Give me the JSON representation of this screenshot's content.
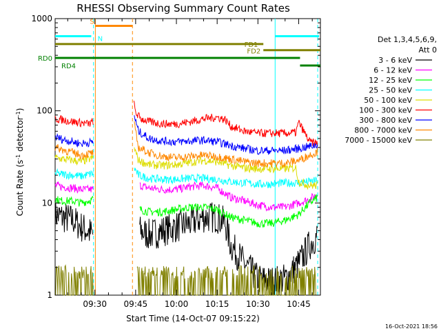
{
  "chart_data": {
    "type": "line",
    "title": "RHESSI Observing Summary Count Rates",
    "xlabel": "Start Time (14-Oct-07 09:15:22)",
    "ylabel_main": "Count Rate (s",
    "ylabel_sup1": "-1",
    "ylabel_mid": " detector",
    "ylabel_sup2": "-1",
    "ylabel_end": ")",
    "y_scale": "log",
    "ylim": [
      1,
      1000
    ],
    "x_range": [
      "09:15:22",
      "10:53:00"
    ],
    "x_ticks": [
      "09:30",
      "09:45",
      "10:00",
      "10:15",
      "10:30",
      "10:45"
    ],
    "y_ticks": [
      "1",
      "10",
      "100",
      "1000"
    ],
    "legend_header": [
      "Det 1,3,4,5,6,9,",
      "Att 0"
    ],
    "series": [
      {
        "name": "3 - 6 keV",
        "color": "#000000",
        "segments": [
          {
            "t": [
              "09:15:22",
              "09:18",
              "09:22",
              "09:25",
              "09:29:30"
            ],
            "v": [
              7.5,
              7.0,
              6.5,
              5.5,
              4.5
            ]
          },
          {
            "t": [
              "09:46:30",
              "09:50",
              "09:55",
              "10:00",
              "10:05",
              "10:10",
              "10:15",
              "10:18",
              "10:20",
              "10:25",
              "10:30",
              "10:35",
              "10:40",
              "10:45",
              "10:49",
              "10:52"
            ],
            "v": [
              5.0,
              4.5,
              5.0,
              5.5,
              6.0,
              7.0,
              7.0,
              6.0,
              3.5,
              2.2,
              1.5,
              1.4,
              1.5,
              2.2,
              3.5,
              4.5
            ]
          }
        ]
      },
      {
        "name": "6 - 12 keV",
        "color": "#ff00ff",
        "segments": [
          {
            "t": [
              "09:15:22",
              "09:18",
              "09:22",
              "09:25",
              "09:29:30"
            ],
            "v": [
              15.5,
              15.0,
              14.5,
              14.0,
              14.0
            ]
          },
          {
            "t": [
              "09:46:30",
              "09:50",
              "09:55",
              "10:00",
              "10:05",
              "10:10",
              "10:15",
              "10:20",
              "10:25",
              "10:30",
              "10:35",
              "10:40",
              "10:45",
              "10:49",
              "10:52"
            ],
            "v": [
              15.5,
              14.5,
              14.0,
              14.0,
              15.0,
              15.5,
              14.5,
              11.5,
              10.5,
              9.5,
              9.0,
              9.0,
              10.0,
              11.0,
              12.5
            ]
          }
        ]
      },
      {
        "name": "12 - 25 keV",
        "color": "#00ff00",
        "segments": [
          {
            "t": [
              "09:15:22",
              "09:18",
              "09:22",
              "09:25",
              "09:29:30"
            ],
            "v": [
              11.0,
              10.5,
              10.5,
              10.0,
              11.0
            ]
          },
          {
            "t": [
              "09:46:30",
              "09:50",
              "09:55",
              "10:00",
              "10:05",
              "10:10",
              "10:15",
              "10:20",
              "10:25",
              "10:30",
              "10:35",
              "10:40",
              "10:45",
              "10:49",
              "10:52"
            ],
            "v": [
              8.5,
              8.0,
              8.0,
              8.5,
              9.0,
              9.0,
              8.5,
              7.0,
              6.5,
              6.0,
              6.0,
              6.5,
              7.5,
              10.0,
              11.5
            ]
          }
        ]
      },
      {
        "name": "25 - 50 keV",
        "color": "#00ffff",
        "segments": [
          {
            "t": [
              "09:15:22",
              "09:18",
              "09:22",
              "09:25",
              "09:29:30"
            ],
            "v": [
              21.0,
              20.5,
              20.0,
              19.5,
              21.0
            ]
          },
          {
            "t": [
              "09:44:30",
              "09:46",
              "09:50",
              "09:55",
              "10:00",
              "10:05",
              "10:10",
              "10:15",
              "10:20",
              "10:25",
              "10:30",
              "10:35",
              "10:40",
              "10:45",
              "10:49",
              "10:52"
            ],
            "v": [
              24.0,
              20.0,
              18.5,
              18.0,
              18.0,
              18.5,
              18.5,
              18.0,
              17.0,
              16.5,
              16.0,
              16.0,
              16.5,
              16.5,
              17.0,
              17.5
            ]
          }
        ]
      },
      {
        "name": "50 - 100 keV",
        "color": "#dddd00",
        "segments": [
          {
            "t": [
              "09:15:22",
              "09:18",
              "09:22",
              "09:25",
              "09:29:30"
            ],
            "v": [
              31.0,
              30.0,
              29.0,
              28.0,
              31.0
            ]
          },
          {
            "t": [
              "09:44:30",
              "09:46",
              "09:50",
              "09:55",
              "10:00",
              "10:05",
              "10:10",
              "10:15",
              "10:20",
              "10:25",
              "10:30",
              "10:35",
              "10:40",
              "10:44",
              "10:45",
              "10:49",
              "10:52"
            ],
            "v": [
              40.0,
              29.0,
              26.0,
              25.5,
              26.0,
              27.5,
              29.0,
              28.0,
              25.5,
              24.0,
              23.5,
              23.5,
              23.5,
              24.0,
              17.0,
              15.5,
              15.5
            ]
          }
        ]
      },
      {
        "name": "100 - 300 keV",
        "color": "#ff0000",
        "segments": [
          {
            "t": [
              "09:15:22",
              "09:18",
              "09:22",
              "09:25",
              "09:28",
              "09:29:30"
            ],
            "v": [
              82,
              80,
              76,
              74,
              72,
              78
            ]
          },
          {
            "t": [
              "09:44:20",
              "09:45",
              "09:47",
              "09:50",
              "09:55",
              "10:00",
              "10:05",
              "10:10",
              "10:15",
              "10:18",
              "10:20",
              "10:25",
              "10:30",
              "10:35",
              "10:40",
              "10:44",
              "10:45",
              "10:49",
              "10:52"
            ],
            "v": [
              120,
              95,
              82,
              76,
              72,
              72,
              76,
              82,
              85,
              80,
              68,
              60,
              57,
              57,
              57,
              58,
              75,
              46,
              44
            ]
          }
        ]
      },
      {
        "name": "300 - 800 keV",
        "color": "#0000ff",
        "segments": [
          {
            "t": [
              "09:15:22",
              "09:18",
              "09:22",
              "09:25",
              "09:29:30"
            ],
            "v": [
              52,
              49,
              46,
              44,
              46
            ]
          },
          {
            "t": [
              "09:44:30",
              "09:46",
              "09:50",
              "09:55",
              "10:00",
              "10:05",
              "10:10",
              "10:15",
              "10:20",
              "10:25",
              "10:30",
              "10:35",
              "10:40",
              "10:45",
              "10:49",
              "10:52"
            ],
            "v": [
              88,
              60,
              50,
              47,
              46,
              47,
              48,
              46,
              42,
              39,
              37,
              37,
              37,
              39,
              41,
              43
            ]
          }
        ]
      },
      {
        "name": "800 - 7000 keV",
        "color": "#ff8800",
        "segments": [
          {
            "t": [
              "09:15:22",
              "09:18",
              "09:22",
              "09:25",
              "09:29:30"
            ],
            "v": [
              40,
              38,
              35,
              33,
              35
            ]
          },
          {
            "t": [
              "09:44:30",
              "09:46",
              "09:50",
              "09:55",
              "10:00",
              "10:05",
              "10:10",
              "10:15",
              "10:20",
              "10:25",
              "10:30",
              "10:35",
              "10:40",
              "10:45",
              "10:49",
              "10:52"
            ],
            "v": [
              70,
              40,
              35,
              32,
              31,
              32,
              33,
              32,
              30,
              28,
              27,
              27,
              27,
              29,
              33,
              36
            ]
          }
        ]
      },
      {
        "name": "7000 - 15000 keV",
        "color": "#808000",
        "segments": [
          {
            "t": [
              "09:15:22",
              "09:20",
              "09:25",
              "09:29:30"
            ],
            "v": [
              1.5,
              1.5,
              1.5,
              1.5
            ]
          },
          {
            "t": [
              "09:45:30",
              "09:50",
              "09:55",
              "10:00",
              "10:05",
              "10:10",
              "10:15",
              "10:20",
              "10:25",
              "10:30",
              "10:35",
              "10:40",
              "10:45",
              "10:50",
              "10:52"
            ],
            "v": [
              1.5,
              1.5,
              1.5,
              1.5,
              1.5,
              1.5,
              1.5,
              1.5,
              1.5,
              1.5,
              1.5,
              1.5,
              1.5,
              1.5,
              1.5
            ]
          }
        ]
      }
    ],
    "vertical_lines": [
      {
        "time": "09:29:30",
        "color": "#00ffff",
        "style": "dashed"
      },
      {
        "time": "09:30:10",
        "color": "#ff8800",
        "style": "solid"
      },
      {
        "time": "09:43:50",
        "color": "#ff8800",
        "style": "dashed"
      },
      {
        "time": "10:36:20",
        "color": "#00ffff",
        "style": "solid"
      },
      {
        "time": "10:52:00",
        "color": "#00ffff",
        "style": "dashed"
      }
    ],
    "status_bars": [
      {
        "label": "",
        "color": "#00ffff",
        "level": 645,
        "spans": [
          [
            "09:15:22",
            "09:28:40"
          ],
          [
            "10:36:20",
            "10:52:30"
          ]
        ]
      },
      {
        "label": "S",
        "color": "#ff8800",
        "level": 835,
        "spans": [
          [
            "09:30:10",
            "09:43:50"
          ]
        ]
      },
      {
        "label": "N",
        "color": "#00ffff",
        "level": 665,
        "spans": []
      },
      {
        "label": "FD1",
        "color": "#808000",
        "level": 530,
        "spans": [
          [
            "09:15:22",
            "10:32:00"
          ]
        ]
      },
      {
        "label": "FD2",
        "color": "#808000",
        "level": 455,
        "spans": [
          [
            "10:32:00",
            "10:53:00"
          ]
        ]
      },
      {
        "label": "RD0",
        "color": "#008000",
        "level": 375,
        "spans": [
          [
            "09:15:22",
            "10:45:30"
          ]
        ]
      },
      {
        "label": "RD4",
        "color": "#008000",
        "level": 310,
        "spans": [
          [
            "10:45:30",
            "10:53:00"
          ]
        ]
      }
    ],
    "footer_date": "16-Oct-2021 18:56"
  }
}
